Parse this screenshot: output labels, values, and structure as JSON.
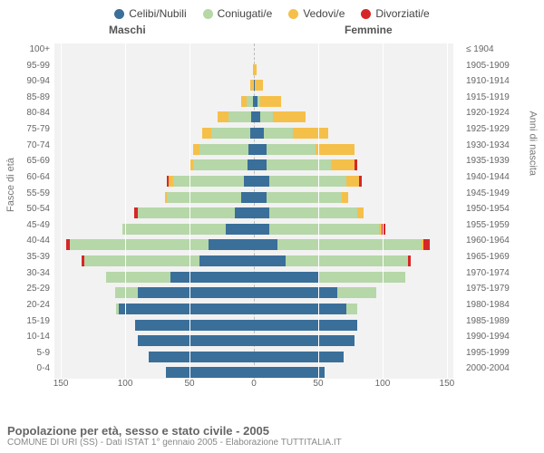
{
  "legend": {
    "items": [
      {
        "label": "Celibi/Nubili",
        "color": "#3a6f9a"
      },
      {
        "label": "Coniugati/e",
        "color": "#b6d7a8"
      },
      {
        "label": "Vedovi/e",
        "color": "#f5c04a"
      },
      {
        "label": "Divorziati/e",
        "color": "#d62728"
      }
    ]
  },
  "headers": {
    "male": "Maschi",
    "female": "Femmine"
  },
  "axis_titles": {
    "left": "Fasce di età",
    "right": "Anni di nascita"
  },
  "caption": {
    "title": "Popolazione per età, sesso e stato civile - 2005",
    "sub": "COMUNE DI URI (SS) - Dati ISTAT 1° gennaio 2005 - Elaborazione TUTTITALIA.IT"
  },
  "chart": {
    "type": "population-pyramid",
    "background_color": "#f2f2f2",
    "grid_color": "#ffffff",
    "centerline_color": "#bbbbbb",
    "x_max": 155,
    "x_ticks": [
      150,
      100,
      50,
      0,
      50,
      100,
      150
    ],
    "colors": {
      "single": "#3a6f9a",
      "married": "#b6d7a8",
      "widowed": "#f5c04a",
      "divorced": "#d62728"
    },
    "age_bands": [
      {
        "age": "100+",
        "birth": "≤ 1904",
        "m": {
          "s": 0,
          "m": 0,
          "w": 0,
          "d": 0
        },
        "f": {
          "s": 0,
          "m": 0,
          "w": 0,
          "d": 0
        }
      },
      {
        "age": "95-99",
        "birth": "1905-1909",
        "m": {
          "s": 0,
          "m": 0,
          "w": 1,
          "d": 0
        },
        "f": {
          "s": 0,
          "m": 0,
          "w": 2,
          "d": 0
        }
      },
      {
        "age": "90-94",
        "birth": "1910-1914",
        "m": {
          "s": 0,
          "m": 1,
          "w": 2,
          "d": 0
        },
        "f": {
          "s": 1,
          "m": 0,
          "w": 6,
          "d": 0
        }
      },
      {
        "age": "85-89",
        "birth": "1915-1919",
        "m": {
          "s": 1,
          "m": 5,
          "w": 4,
          "d": 0
        },
        "f": {
          "s": 3,
          "m": 2,
          "w": 16,
          "d": 0
        }
      },
      {
        "age": "80-84",
        "birth": "1920-1924",
        "m": {
          "s": 2,
          "m": 18,
          "w": 8,
          "d": 0
        },
        "f": {
          "s": 5,
          "m": 10,
          "w": 25,
          "d": 0
        }
      },
      {
        "age": "75-79",
        "birth": "1925-1929",
        "m": {
          "s": 3,
          "m": 30,
          "w": 7,
          "d": 0
        },
        "f": {
          "s": 8,
          "m": 22,
          "w": 28,
          "d": 0
        }
      },
      {
        "age": "70-74",
        "birth": "1930-1934",
        "m": {
          "s": 4,
          "m": 38,
          "w": 5,
          "d": 0
        },
        "f": {
          "s": 10,
          "m": 38,
          "w": 30,
          "d": 0
        }
      },
      {
        "age": "65-69",
        "birth": "1935-1939",
        "m": {
          "s": 5,
          "m": 42,
          "w": 3,
          "d": 0
        },
        "f": {
          "s": 10,
          "m": 50,
          "w": 18,
          "d": 2
        }
      },
      {
        "age": "60-64",
        "birth": "1940-1944",
        "m": {
          "s": 8,
          "m": 55,
          "w": 3,
          "d": 2
        },
        "f": {
          "s": 12,
          "m": 60,
          "w": 10,
          "d": 2
        }
      },
      {
        "age": "55-59",
        "birth": "1945-1949",
        "m": {
          "s": 10,
          "m": 58,
          "w": 1,
          "d": 0
        },
        "f": {
          "s": 10,
          "m": 58,
          "w": 5,
          "d": 0
        }
      },
      {
        "age": "50-54",
        "birth": "1950-1954",
        "m": {
          "s": 15,
          "m": 75,
          "w": 0,
          "d": 3
        },
        "f": {
          "s": 12,
          "m": 68,
          "w": 5,
          "d": 0
        }
      },
      {
        "age": "45-49",
        "birth": "1955-1959",
        "m": {
          "s": 22,
          "m": 80,
          "w": 0,
          "d": 0
        },
        "f": {
          "s": 12,
          "m": 85,
          "w": 2,
          "d": 3
        }
      },
      {
        "age": "40-44",
        "birth": "1960-1964",
        "m": {
          "s": 35,
          "m": 108,
          "w": 0,
          "d": 3
        },
        "f": {
          "s": 18,
          "m": 112,
          "w": 2,
          "d": 5
        }
      },
      {
        "age": "35-39",
        "birth": "1965-1969",
        "m": {
          "s": 42,
          "m": 90,
          "w": 0,
          "d": 2
        },
        "f": {
          "s": 25,
          "m": 95,
          "w": 0,
          "d": 2
        }
      },
      {
        "age": "30-34",
        "birth": "1970-1974",
        "m": {
          "s": 65,
          "m": 50,
          "w": 0,
          "d": 0
        },
        "f": {
          "s": 50,
          "m": 68,
          "w": 0,
          "d": 0
        }
      },
      {
        "age": "25-29",
        "birth": "1975-1979",
        "m": {
          "s": 90,
          "m": 18,
          "w": 0,
          "d": 0
        },
        "f": {
          "s": 65,
          "m": 30,
          "w": 0,
          "d": 0
        }
      },
      {
        "age": "20-24",
        "birth": "1980-1984",
        "m": {
          "s": 105,
          "m": 2,
          "w": 0,
          "d": 0
        },
        "f": {
          "s": 72,
          "m": 8,
          "w": 0,
          "d": 0
        }
      },
      {
        "age": "15-19",
        "birth": "1985-1989",
        "m": {
          "s": 92,
          "m": 0,
          "w": 0,
          "d": 0
        },
        "f": {
          "s": 80,
          "m": 0,
          "w": 0,
          "d": 0
        }
      },
      {
        "age": "10-14",
        "birth": "1990-1994",
        "m": {
          "s": 90,
          "m": 0,
          "w": 0,
          "d": 0
        },
        "f": {
          "s": 78,
          "m": 0,
          "w": 0,
          "d": 0
        }
      },
      {
        "age": "5-9",
        "birth": "1995-1999",
        "m": {
          "s": 82,
          "m": 0,
          "w": 0,
          "d": 0
        },
        "f": {
          "s": 70,
          "m": 0,
          "w": 0,
          "d": 0
        }
      },
      {
        "age": "0-4",
        "birth": "2000-2004",
        "m": {
          "s": 68,
          "m": 0,
          "w": 0,
          "d": 0
        },
        "f": {
          "s": 55,
          "m": 0,
          "w": 0,
          "d": 0
        }
      }
    ]
  }
}
